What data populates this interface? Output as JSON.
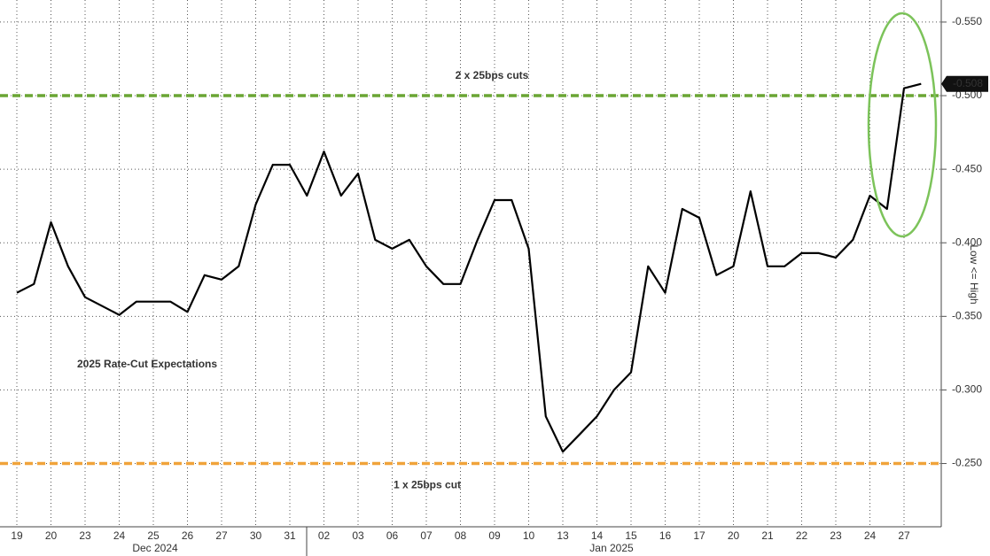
{
  "chart_data": {
    "type": "line",
    "title": "2025 Rate-Cut Expectations",
    "y_axis_label": "Low <= High",
    "categories": [
      "19",
      null,
      "20",
      null,
      "23",
      null,
      "24",
      null,
      "25",
      null,
      "26",
      null,
      "27",
      null,
      "30",
      null,
      "31",
      null,
      "02",
      null,
      "03",
      null,
      "06",
      null,
      "07",
      null,
      "08",
      null,
      "09",
      null,
      "10",
      null,
      "13",
      null,
      "14",
      null,
      "15",
      null,
      "16",
      null,
      "17",
      null,
      "20",
      null,
      "21",
      null,
      "22",
      null,
      "23",
      null,
      "24",
      null,
      "27",
      null
    ],
    "month_labels": [
      "Dec 2024",
      "Jan 2025"
    ],
    "series": [
      {
        "color": "#000000",
        "values": [
          -0.366,
          -0.372,
          -0.414,
          -0.384,
          -0.363,
          -0.357,
          -0.351,
          -0.36,
          -0.36,
          -0.36,
          -0.353,
          -0.378,
          -0.375,
          -0.384,
          -0.426,
          -0.453,
          -0.453,
          -0.432,
          -0.462,
          -0.432,
          -0.447,
          -0.402,
          -0.396,
          -0.402,
          -0.384,
          -0.372,
          -0.372,
          -0.402,
          -0.429,
          -0.429,
          -0.396,
          -0.282,
          -0.258,
          -0.27,
          -0.282,
          -0.3,
          -0.312,
          -0.384,
          -0.366,
          -0.423,
          -0.417,
          -0.378,
          -0.384,
          -0.435,
          -0.384,
          -0.384,
          -0.393,
          -0.393,
          -0.39,
          -0.402,
          -0.432,
          -0.423,
          -0.505,
          -0.508
        ]
      }
    ],
    "current_value": {
      "value": -0.508,
      "label": "-0.508"
    },
    "reference_lines": [
      {
        "value": -0.5,
        "label": "2 x 25bps cuts",
        "color": "#6aa534"
      },
      {
        "value": -0.25,
        "label": "1 x 25bps cut",
        "color": "#f0a33a"
      }
    ],
    "ylim": [
      -0.207,
      -0.565
    ],
    "yticks": [
      {
        "value": -0.25,
        "label": "-0.250"
      },
      {
        "value": -0.3,
        "label": "-0.300"
      },
      {
        "value": -0.35,
        "label": "-0.350"
      },
      {
        "value": -0.4,
        "label": "-0.400"
      },
      {
        "value": -0.45,
        "label": "-0.450"
      },
      {
        "value": -0.5,
        "label": "-0.500"
      },
      {
        "value": -0.55,
        "label": "-0.550"
      }
    ],
    "grid": true
  }
}
